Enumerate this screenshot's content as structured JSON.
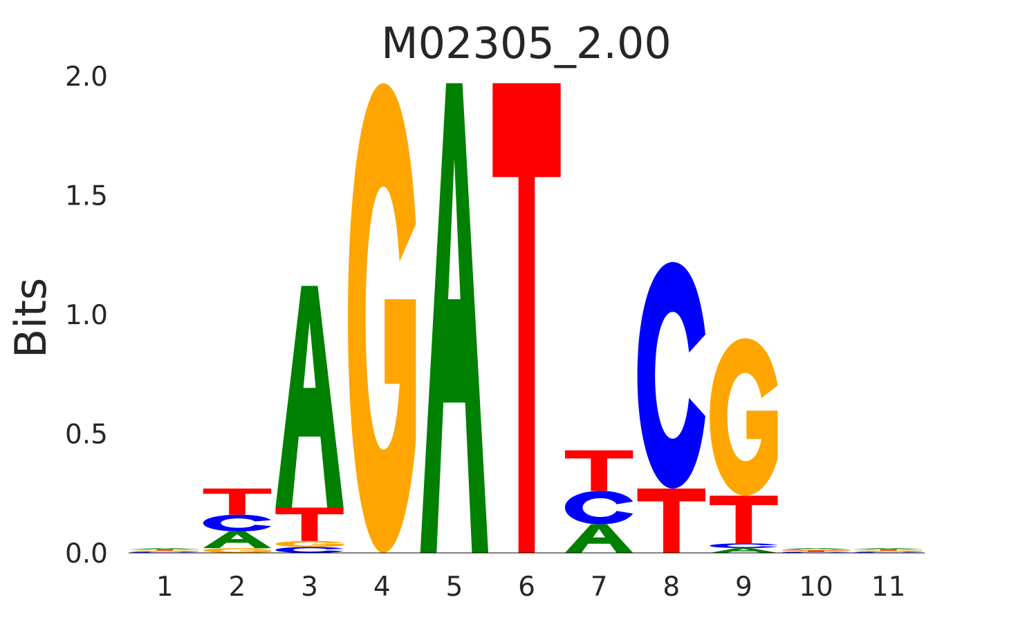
{
  "chart_data": {
    "type": "sequence-logo",
    "title": "M02305_2.00",
    "xlabel": "",
    "ylabel": "Bits",
    "ylim": [
      0,
      2.0
    ],
    "y_ticks": [
      "0.0",
      "0.5",
      "1.0",
      "1.5",
      "2.0"
    ],
    "y_tick_values": [
      0.0,
      0.5,
      1.0,
      1.5,
      2.0
    ],
    "grid": false,
    "positions": [
      {
        "label": "1",
        "letters": [
          {
            "base": "C",
            "bits": 0.005
          },
          {
            "base": "G",
            "bits": 0.005
          },
          {
            "base": "T",
            "bits": 0.005
          },
          {
            "base": "A",
            "bits": 0.005
          }
        ]
      },
      {
        "label": "2",
        "letters": [
          {
            "base": "G",
            "bits": 0.02
          },
          {
            "base": "A",
            "bits": 0.07
          },
          {
            "base": "C",
            "bits": 0.07
          },
          {
            "base": "T",
            "bits": 0.11
          }
        ]
      },
      {
        "label": "3",
        "letters": [
          {
            "base": "C",
            "bits": 0.025
          },
          {
            "base": "G",
            "bits": 0.025
          },
          {
            "base": "T",
            "bits": 0.14
          },
          {
            "base": "A",
            "bits": 0.93
          }
        ]
      },
      {
        "label": "4",
        "letters": [
          {
            "base": "G",
            "bits": 1.97
          }
        ]
      },
      {
        "label": "5",
        "letters": [
          {
            "base": "A",
            "bits": 1.97
          }
        ]
      },
      {
        "label": "6",
        "letters": [
          {
            "base": "T",
            "bits": 1.97
          }
        ]
      },
      {
        "label": "7",
        "letters": [
          {
            "base": "A",
            "bits": 0.12
          },
          {
            "base": "C",
            "bits": 0.14
          },
          {
            "base": "T",
            "bits": 0.17
          }
        ]
      },
      {
        "label": "8",
        "letters": [
          {
            "base": "T",
            "bits": 0.27
          },
          {
            "base": "C",
            "bits": 0.95
          }
        ]
      },
      {
        "label": "9",
        "letters": [
          {
            "base": "A",
            "bits": 0.02
          },
          {
            "base": "C",
            "bits": 0.02
          },
          {
            "base": "T",
            "bits": 0.2
          },
          {
            "base": "G",
            "bits": 0.66
          }
        ]
      },
      {
        "label": "10",
        "letters": [
          {
            "base": "C",
            "bits": 0.005
          },
          {
            "base": "T",
            "bits": 0.005
          },
          {
            "base": "G",
            "bits": 0.005
          },
          {
            "base": "A",
            "bits": 0.005
          }
        ]
      },
      {
        "label": "11",
        "letters": [
          {
            "base": "C",
            "bits": 0.005
          },
          {
            "base": "G",
            "bits": 0.005
          },
          {
            "base": "T",
            "bits": 0.005
          },
          {
            "base": "A",
            "bits": 0.005
          }
        ]
      }
    ],
    "colors": {
      "A": "#008000",
      "C": "#0000ff",
      "G": "#ffa500",
      "T": "#ff0000"
    }
  }
}
